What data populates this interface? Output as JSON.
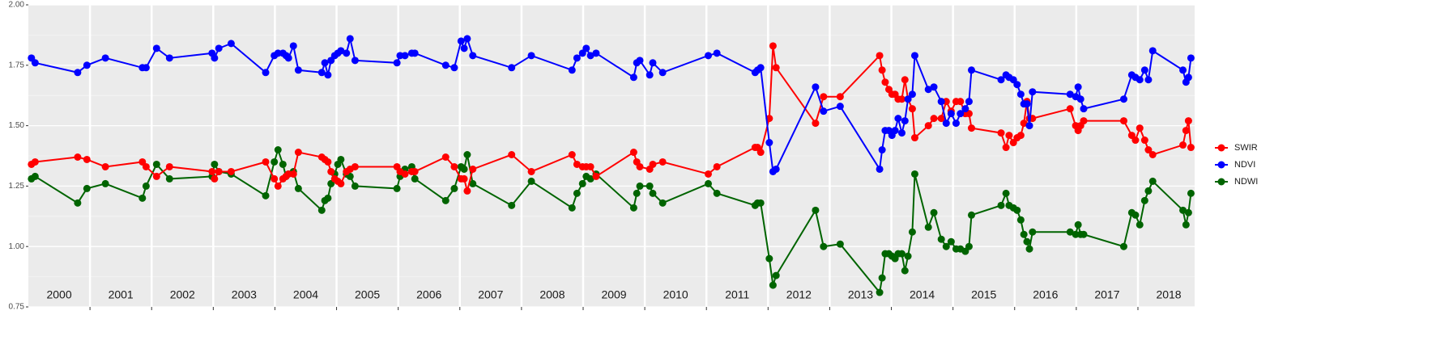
{
  "chart_data": {
    "type": "line",
    "x": [
      2000.05,
      2000.11,
      2000.8,
      2000.95,
      2001.25,
      2001.85,
      2001.91,
      2002.08,
      2002.29,
      2002.98,
      2003.02,
      2003.09,
      2003.29,
      2003.85,
      2003.99,
      2004.05,
      2004.13,
      2004.18,
      2004.22,
      2004.3,
      2004.38,
      2004.76,
      2004.81,
      2004.86,
      2004.91,
      2004.97,
      2005.02,
      2005.07,
      2005.16,
      2005.22,
      2005.3,
      2005.98,
      2006.03,
      2006.11,
      2006.22,
      2006.27,
      2006.77,
      2006.91,
      2007.02,
      2007.07,
      2007.12,
      2007.21,
      2007.84,
      2008.16,
      2008.82,
      2008.9,
      2008.99,
      2009.05,
      2009.12,
      2009.21,
      2009.82,
      2009.87,
      2009.92,
      2010.08,
      2010.13,
      2010.29,
      2011.03,
      2011.17,
      2011.79,
      2011.83,
      2011.88,
      2012.02,
      2012.08,
      2012.13,
      2012.77,
      2012.9,
      2013.17,
      2013.81,
      2013.85,
      2013.9,
      2013.96,
      2014.01,
      2014.06,
      2014.11,
      2014.17,
      2014.22,
      2014.27,
      2014.34,
      2014.38,
      2014.6,
      2014.69,
      2014.81,
      2014.89,
      2014.97,
      2015.05,
      2015.12,
      2015.2,
      2015.26,
      2015.3,
      2015.78,
      2015.86,
      2015.91,
      2015.98,
      2016.04,
      2016.1,
      2016.15,
      2016.2,
      2016.24,
      2016.29,
      2016.9,
      2016.99,
      2017.03,
      2017.07,
      2017.12,
      2017.77,
      2017.9,
      2017.96,
      2018.03,
      2018.11,
      2018.17,
      2018.24,
      2018.73,
      2018.78,
      2018.82,
      2018.86
    ],
    "series": [
      {
        "name": "SWIR",
        "color": "#ff0000",
        "values": [
          1.34,
          1.35,
          1.37,
          1.36,
          1.33,
          1.35,
          1.33,
          1.29,
          1.33,
          1.31,
          1.28,
          1.31,
          1.31,
          1.35,
          1.28,
          1.25,
          1.28,
          1.29,
          1.3,
          1.3,
          1.39,
          1.37,
          1.36,
          1.35,
          1.31,
          1.28,
          1.27,
          1.26,
          1.31,
          1.32,
          1.33,
          1.33,
          1.31,
          1.3,
          1.31,
          1.31,
          1.37,
          1.33,
          1.28,
          1.28,
          1.23,
          1.32,
          1.38,
          1.31,
          1.38,
          1.34,
          1.33,
          1.33,
          1.33,
          1.29,
          1.39,
          1.35,
          1.33,
          1.32,
          1.34,
          1.35,
          1.3,
          1.33,
          1.41,
          1.41,
          1.39,
          1.53,
          1.83,
          1.74,
          1.51,
          1.62,
          1.62,
          1.79,
          1.73,
          1.68,
          1.65,
          1.63,
          1.63,
          1.61,
          1.61,
          1.69,
          1.61,
          1.57,
          1.45,
          1.5,
          1.53,
          1.53,
          1.6,
          1.56,
          1.6,
          1.6,
          1.55,
          1.55,
          1.49,
          1.47,
          1.41,
          1.46,
          1.43,
          1.45,
          1.46,
          1.51,
          1.6,
          1.53,
          1.53,
          1.57,
          1.5,
          1.48,
          1.5,
          1.52,
          1.52,
          1.46,
          1.44,
          1.49,
          1.44,
          1.4,
          1.38,
          1.42,
          1.48,
          1.52,
          1.41
        ]
      },
      {
        "name": "NDVI",
        "color": "#0000ff",
        "values": [
          1.78,
          1.76,
          1.72,
          1.75,
          1.78,
          1.74,
          1.74,
          1.82,
          1.78,
          1.8,
          1.78,
          1.82,
          1.84,
          1.72,
          1.79,
          1.8,
          1.8,
          1.79,
          1.78,
          1.83,
          1.73,
          1.72,
          1.76,
          1.71,
          1.77,
          1.79,
          1.8,
          1.81,
          1.8,
          1.86,
          1.77,
          1.76,
          1.79,
          1.79,
          1.8,
          1.8,
          1.75,
          1.74,
          1.85,
          1.82,
          1.86,
          1.79,
          1.74,
          1.79,
          1.73,
          1.78,
          1.8,
          1.82,
          1.79,
          1.8,
          1.7,
          1.76,
          1.77,
          1.71,
          1.76,
          1.72,
          1.79,
          1.8,
          1.72,
          1.73,
          1.74,
          1.43,
          1.31,
          1.32,
          1.66,
          1.56,
          1.58,
          1.32,
          1.4,
          1.48,
          1.48,
          1.46,
          1.48,
          1.53,
          1.47,
          1.52,
          1.61,
          1.63,
          1.79,
          1.65,
          1.66,
          1.6,
          1.51,
          1.55,
          1.51,
          1.55,
          1.57,
          1.6,
          1.73,
          1.69,
          1.71,
          1.7,
          1.69,
          1.67,
          1.63,
          1.59,
          1.59,
          1.5,
          1.64,
          1.63,
          1.62,
          1.66,
          1.61,
          1.57,
          1.61,
          1.71,
          1.7,
          1.69,
          1.73,
          1.69,
          1.81,
          1.73,
          1.68,
          1.7,
          1.78
        ]
      },
      {
        "name": "NDWI",
        "color": "#006400",
        "values": [
          1.28,
          1.29,
          1.18,
          1.24,
          1.26,
          1.2,
          1.25,
          1.34,
          1.28,
          1.29,
          1.34,
          1.31,
          1.3,
          1.21,
          1.35,
          1.4,
          1.34,
          1.29,
          1.3,
          1.31,
          1.24,
          1.15,
          1.19,
          1.2,
          1.26,
          1.3,
          1.34,
          1.36,
          1.3,
          1.29,
          1.25,
          1.24,
          1.29,
          1.32,
          1.33,
          1.28,
          1.19,
          1.24,
          1.33,
          1.32,
          1.38,
          1.26,
          1.17,
          1.27,
          1.16,
          1.22,
          1.26,
          1.29,
          1.28,
          1.3,
          1.16,
          1.22,
          1.25,
          1.25,
          1.22,
          1.18,
          1.26,
          1.22,
          1.17,
          1.18,
          1.18,
          0.95,
          0.84,
          0.88,
          1.15,
          1.0,
          1.01,
          0.81,
          0.87,
          0.97,
          0.97,
          0.96,
          0.95,
          0.97,
          0.97,
          0.9,
          0.96,
          1.06,
          1.3,
          1.08,
          1.14,
          1.03,
          1.0,
          1.02,
          0.99,
          0.99,
          0.98,
          1.0,
          1.13,
          1.17,
          1.22,
          1.17,
          1.16,
          1.15,
          1.11,
          1.05,
          1.02,
          0.99,
          1.06,
          1.06,
          1.05,
          1.09,
          1.05,
          1.05,
          1.0,
          1.14,
          1.13,
          1.09,
          1.19,
          1.23,
          1.27,
          1.15,
          1.09,
          1.14,
          1.22
        ]
      }
    ],
    "year_labels": [
      "2000",
      "2001",
      "2002",
      "2003",
      "2004",
      "2005",
      "2006",
      "2007",
      "2008",
      "2009",
      "2010",
      "2011",
      "2012",
      "2013",
      "2014",
      "2015",
      "2016",
      "2017",
      "2018"
    ],
    "xlim": [
      2000,
      2018.92
    ],
    "xticks": [
      2001,
      2002,
      2003,
      2004,
      2005,
      2006,
      2007,
      2008,
      2009,
      2010,
      2011,
      2012,
      2013,
      2014,
      2015,
      2016,
      2017,
      2018
    ],
    "ylim": [
      0.75,
      2.0
    ],
    "yticks": [
      {
        "value": 0.75,
        "label": "0.75"
      },
      {
        "value": 1.0,
        "label": "1.00"
      },
      {
        "value": 1.25,
        "label": "1.25"
      },
      {
        "value": 1.5,
        "label": "1.50"
      },
      {
        "value": 1.75,
        "label": "1.75"
      },
      {
        "value": 2.0,
        "label": "2.00"
      }
    ],
    "grid": true,
    "legend": "right"
  }
}
